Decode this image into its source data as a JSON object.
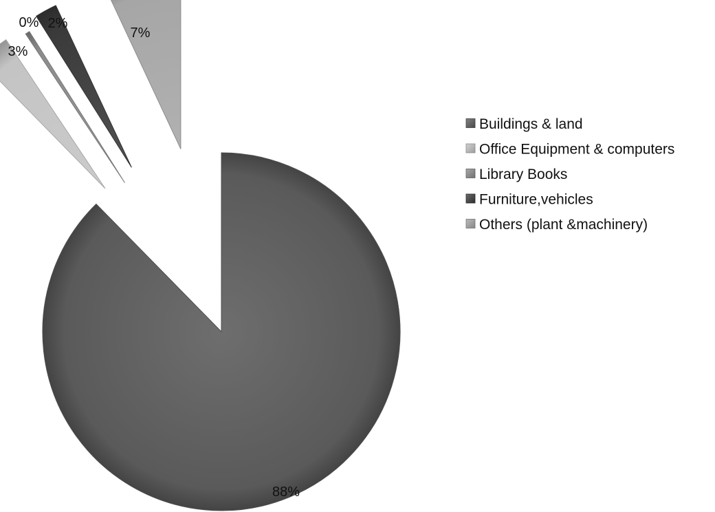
{
  "chart_data": {
    "type": "pie",
    "exploded": true,
    "shading": "gradient-3d",
    "legend_position": "right",
    "start_angle_deg": 0,
    "direction": "clockwise",
    "slices": [
      {
        "label": "Buildings & land",
        "value": 88,
        "value_label": "88%",
        "color": "#5a5a5a"
      },
      {
        "label": "Office Equipment & computers",
        "value": 3,
        "value_label": "3%",
        "color": "#c4c4c4"
      },
      {
        "label": "Library Books",
        "value": 0.4,
        "value_label": "0%",
        "color": "#8c8c8c"
      },
      {
        "label": "Furniture,vehicles",
        "value": 2,
        "value_label": "2%",
        "color": "#3a3a3a"
      },
      {
        "label": "Others (plant &machinery)",
        "value": 7,
        "value_label": "7%",
        "color": "#a6a6a6"
      }
    ]
  }
}
